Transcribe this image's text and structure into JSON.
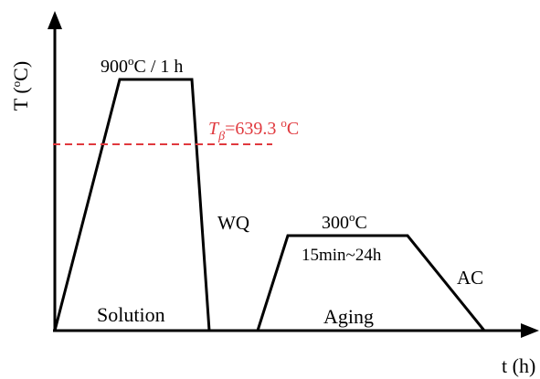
{
  "axes": {
    "y_label": "T (",
    "y_label_deg": "o",
    "y_label_unit": "C)",
    "x_label": "t (h)"
  },
  "solution": {
    "temp_value": "900",
    "temp_deg": "o",
    "temp_rest": "C / 1 h",
    "quench": "WQ",
    "stage_label": "Solution"
  },
  "beta_transus": {
    "symbol": "T",
    "subscript": "β",
    "value": "=639.3 ",
    "deg": "o",
    "unit": "C",
    "color": "#e0393e"
  },
  "aging": {
    "temp_value": "300",
    "temp_deg": "o",
    "temp_unit": "C",
    "time": "15min~24h",
    "cooling": "AC",
    "stage_label": "Aging"
  },
  "colors": {
    "line": "#000000",
    "dashed": "#e0393e"
  }
}
